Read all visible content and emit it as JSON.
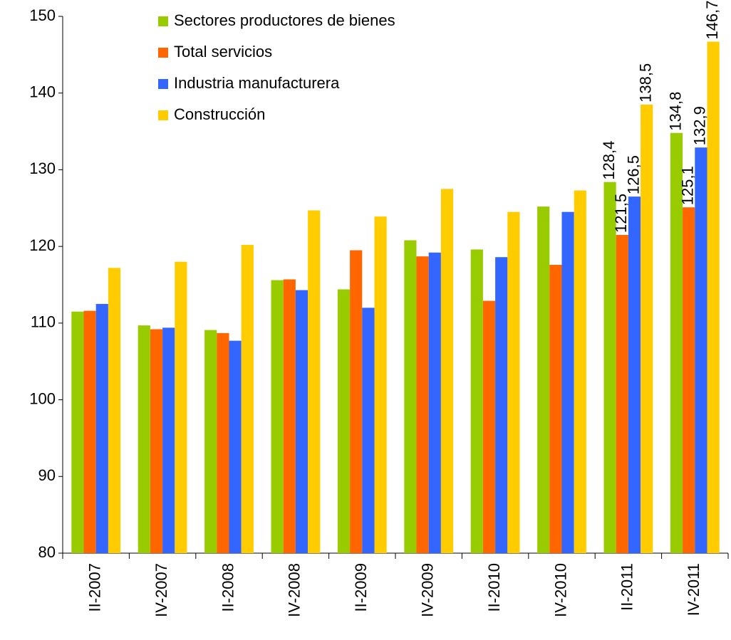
{
  "chart_data": {
    "type": "bar",
    "categories": [
      "II-2007",
      "IV-2007",
      "II-2008",
      "IV-2008",
      "II-2009",
      "IV-2009",
      "II-2010",
      "IV-2010",
      "II-2011",
      "IV-2011"
    ],
    "series": [
      {
        "name": "Sectores productores de bienes",
        "color": "#99cc00",
        "values": [
          111.5,
          109.7,
          109.1,
          115.6,
          114.4,
          120.8,
          119.6,
          125.2,
          128.4,
          134.8
        ],
        "value_labels": [
          null,
          null,
          null,
          null,
          null,
          null,
          null,
          null,
          "128,4",
          "134,8"
        ]
      },
      {
        "name": "Total servicios",
        "color": "#ff6600",
        "values": [
          111.6,
          109.2,
          108.7,
          115.7,
          119.5,
          118.7,
          112.9,
          117.6,
          121.5,
          125.1
        ],
        "value_labels": [
          null,
          null,
          null,
          null,
          null,
          null,
          null,
          null,
          "121,5",
          "125,1"
        ]
      },
      {
        "name": "Industria manufacturera",
        "color": "#3366ff",
        "values": [
          112.5,
          109.4,
          107.7,
          114.3,
          112.0,
          119.2,
          118.6,
          124.5,
          126.5,
          132.9
        ],
        "value_labels": [
          null,
          null,
          null,
          null,
          null,
          null,
          null,
          null,
          "126,5",
          "132,9"
        ]
      },
      {
        "name": "Construcción",
        "color": "#ffcc00",
        "values": [
          117.2,
          118.0,
          120.2,
          124.7,
          123.9,
          127.5,
          124.5,
          127.3,
          138.5,
          146.7
        ],
        "value_labels": [
          null,
          null,
          null,
          null,
          null,
          null,
          null,
          null,
          "138,5",
          "146,7"
        ]
      }
    ],
    "ylim": [
      80,
      150
    ],
    "yticks": [
      80,
      90,
      100,
      110,
      120,
      130,
      140,
      150
    ],
    "grid": false
  }
}
